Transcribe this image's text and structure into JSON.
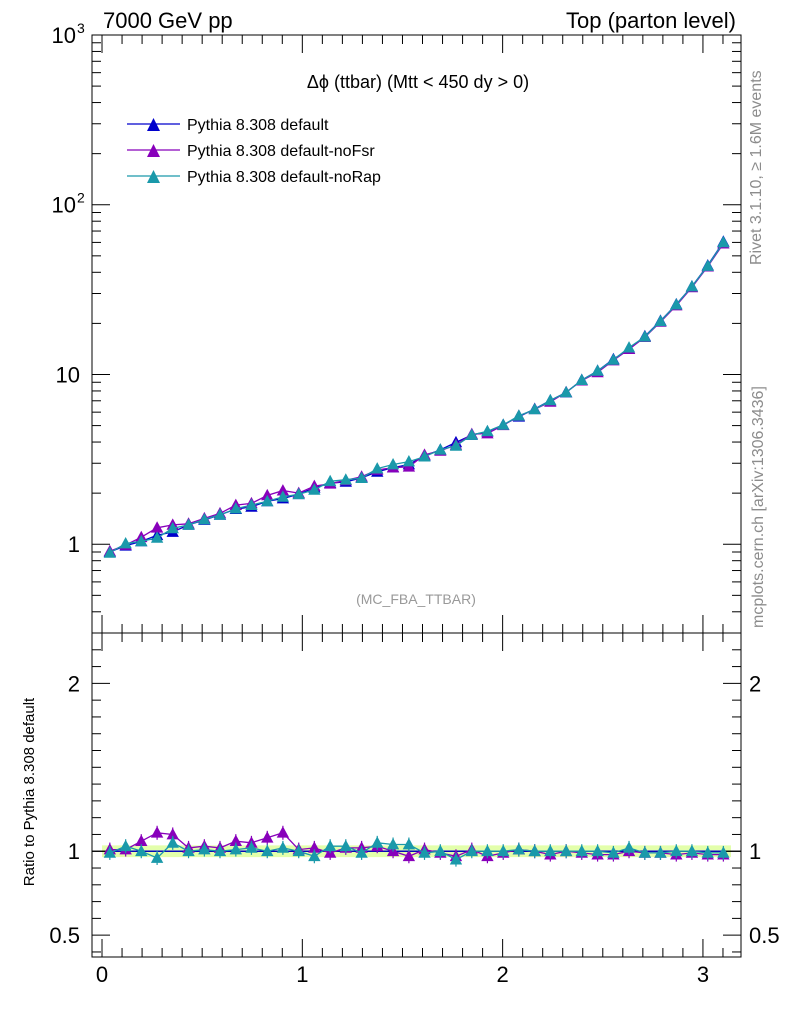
{
  "header": {
    "left": "7000 GeV pp",
    "right": "Top (parton level)"
  },
  "side_labels": {
    "rivet": "Rivet 3.1.10, ≥ 1.6M events",
    "mcplots": "mcplots.cern.ch [arXiv:1306.3436]"
  },
  "chart_data": {
    "type": "line",
    "title": "Δϕ (ttbar) (Mtt < 450 dy > 0)",
    "analysis_tag": "(MC_FBA_TTBAR)",
    "legend_placement": "top-left",
    "main": {
      "yscale": "log",
      "ylim": [
        0.3,
        1000
      ],
      "xlim": [
        -0.05,
        3.19
      ],
      "y_tick_labels": [
        "1",
        "10",
        "10",
        "10"
      ],
      "y_tick_exponents": [
        "",
        "",
        "2",
        "3"
      ],
      "x": [
        0.039,
        0.118,
        0.196,
        0.275,
        0.353,
        0.432,
        0.511,
        0.589,
        0.668,
        0.746,
        0.825,
        0.903,
        0.982,
        1.06,
        1.139,
        1.217,
        1.296,
        1.374,
        1.453,
        1.532,
        1.61,
        1.689,
        1.767,
        1.846,
        1.924,
        2.003,
        2.081,
        2.16,
        2.238,
        2.317,
        2.395,
        2.474,
        2.553,
        2.631,
        2.71,
        2.788,
        2.867,
        2.945,
        3.024,
        3.102
      ],
      "series": [
        {
          "name": "Pythia 8.308 default",
          "color": "#0000cc",
          "marker": "triangle",
          "values": [
            0.9,
            0.98,
            1.04,
            1.13,
            1.18,
            1.3,
            1.39,
            1.49,
            1.61,
            1.66,
            1.79,
            1.86,
            1.97,
            2.15,
            2.29,
            2.33,
            2.46,
            2.67,
            2.83,
            2.95,
            3.32,
            3.6,
            3.98,
            4.4,
            4.61,
            5.05,
            5.64,
            6.26,
            7.03,
            7.83,
            9.28,
            10.5,
            12.3,
            14.1,
            16.8,
            20.7,
            25.9,
            33.0,
            43.9,
            60.5
          ]
        },
        {
          "name": "Pythia 8.308 default-noFsr",
          "color": "#8800bb",
          "marker": "triangle",
          "values": [
            0.91,
            0.99,
            1.1,
            1.25,
            1.3,
            1.32,
            1.42,
            1.52,
            1.7,
            1.74,
            1.94,
            2.07,
            2.0,
            2.2,
            2.27,
            2.38,
            2.5,
            2.74,
            2.83,
            2.86,
            3.36,
            3.55,
            3.85,
            4.45,
            4.49,
            5.02,
            5.7,
            6.24,
            6.9,
            7.86,
            9.2,
            10.3,
            12.1,
            14.1,
            16.6,
            20.4,
            25.5,
            32.6,
            43.2,
            59.0
          ]
        },
        {
          "name": "Pythia 8.308 default-noRap",
          "color": "#1a99aa",
          "marker": "triangle",
          "values": [
            0.89,
            1.01,
            1.04,
            1.09,
            1.24,
            1.3,
            1.4,
            1.49,
            1.62,
            1.7,
            1.79,
            1.9,
            1.97,
            2.09,
            2.35,
            2.4,
            2.45,
            2.79,
            2.95,
            3.07,
            3.28,
            3.6,
            3.8,
            4.4,
            4.63,
            5.05,
            5.71,
            6.23,
            7.04,
            7.84,
            9.26,
            10.5,
            12.2,
            14.4,
            16.7,
            20.6,
            25.8,
            33.0,
            43.6,
            60.0
          ]
        }
      ]
    },
    "ratio": {
      "ylabel": "Ratio to Pythia 8.308 default",
      "ylim": [
        0.37,
        2.3
      ],
      "y_tick_labels": [
        "0.5",
        "1",
        "2"
      ],
      "x_tick_labels": [
        "0",
        "1",
        "2",
        "3"
      ],
      "band_color": "#ccff66",
      "series": [
        {
          "name": "Pythia 8.308 default-noFsr",
          "color": "#8800bb",
          "values": [
            1.01,
            1.01,
            1.06,
            1.11,
            1.1,
            1.02,
            1.03,
            1.02,
            1.06,
            1.05,
            1.08,
            1.11,
            1.01,
            1.02,
            0.99,
            1.02,
            1.02,
            1.03,
            1.0,
            0.97,
            1.01,
            0.99,
            0.97,
            1.01,
            0.97,
            0.99,
            1.01,
            1.0,
            0.98,
            1.0,
            0.99,
            0.98,
            0.98,
            1.0,
            0.99,
            0.99,
            0.98,
            0.99,
            0.98,
            0.98
          ]
        },
        {
          "name": "Pythia 8.308 default-noRap",
          "color": "#1a99aa",
          "values": [
            0.99,
            1.03,
            1.0,
            0.96,
            1.05,
            1.0,
            1.01,
            1.0,
            1.01,
            1.02,
            1.0,
            1.02,
            1.0,
            0.97,
            1.03,
            1.03,
            0.99,
            1.05,
            1.04,
            1.04,
            0.99,
            1.0,
            0.95,
            1.0,
            1.0,
            1.0,
            1.01,
            1.0,
            1.0,
            1.0,
            1.0,
            1.0,
            0.99,
            1.02,
            0.99,
            0.99,
            1.0,
            1.0,
            0.99,
            0.99
          ]
        }
      ]
    }
  }
}
